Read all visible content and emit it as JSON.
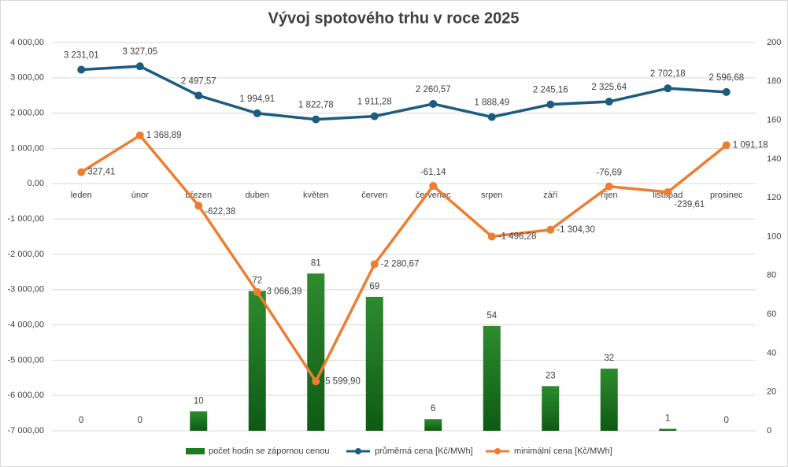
{
  "chart_data": {
    "type": "combo",
    "title": "Vývoj spotového trhu v roce 2025",
    "categories": [
      "leden",
      "únor",
      "březen",
      "duben",
      "květen",
      "červen",
      "červenec",
      "srpen",
      "září",
      "říjen",
      "listopad",
      "prosinec"
    ],
    "series": [
      {
        "name": "počet hodin se zápornou cenou",
        "type": "bar",
        "axis": "y2",
        "color": "#1e7a1e",
        "values": [
          0,
          0,
          10,
          72,
          81,
          69,
          6,
          54,
          23,
          32,
          1,
          0
        ]
      },
      {
        "name": "průměrná cena [Kč/MWh]",
        "type": "line",
        "axis": "y",
        "color": "#1c5c80",
        "values": [
          3231.01,
          3327.05,
          2497.57,
          1994.91,
          1822.78,
          1911.28,
          2260.57,
          1888.49,
          2245.16,
          2325.64,
          2702.18,
          2596.68
        ],
        "value_labels": [
          "3 231,01",
          "3 327,05",
          "2 497,57",
          "1 994,91",
          "1 822,78",
          "1 911,28",
          "2 260,57",
          "1 888,49",
          "2 245,16",
          "2 325,64",
          "2 702,18",
          "2 596,68"
        ]
      },
      {
        "name": "minimální cena [Kč/MWh]",
        "type": "line",
        "axis": "y",
        "color": "#ed7d31",
        "values": [
          327.41,
          1368.89,
          -622.38,
          -3066.39,
          -5599.9,
          -2280.67,
          -61.14,
          -1496.28,
          -1304.3,
          -76.69,
          -239.61,
          1091.18
        ],
        "value_labels": [
          "327,41",
          "1 368,89",
          "-622,38",
          "-3 066,39",
          "-5 599,90",
          "-2 280,67",
          "-61,14",
          "-1 496,28",
          "-1 304,30",
          "-76,69",
          "-239,61",
          "1 091,18"
        ]
      }
    ],
    "ylim": [
      -7000,
      4000
    ],
    "yticks": [
      {
        "value": -7000,
        "label": "-7 000,00"
      },
      {
        "value": -6000,
        "label": "-6 000,00"
      },
      {
        "value": -5000,
        "label": "-5 000,00"
      },
      {
        "value": -4000,
        "label": "-4 000,00"
      },
      {
        "value": -3000,
        "label": "-3 000,00"
      },
      {
        "value": -2000,
        "label": "-2 000,00"
      },
      {
        "value": -1000,
        "label": "-1 000,00"
      },
      {
        "value": 0,
        "label": "0,00"
      },
      {
        "value": 1000,
        "label": "1 000,00"
      },
      {
        "value": 2000,
        "label": "2 000,00"
      },
      {
        "value": 3000,
        "label": "3 000,00"
      },
      {
        "value": 4000,
        "label": "4 000,00"
      }
    ],
    "y2lim": [
      0,
      200
    ],
    "y2ticks": [
      0,
      20,
      40,
      60,
      80,
      100,
      120,
      140,
      160,
      180,
      200
    ],
    "grid": true
  }
}
